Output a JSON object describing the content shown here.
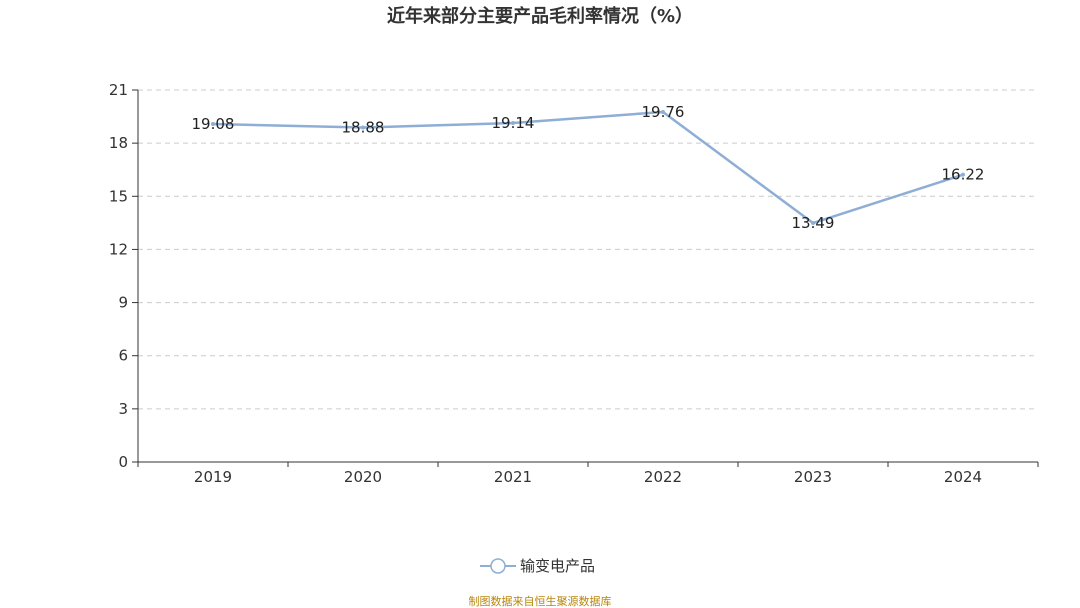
{
  "chart_data": {
    "type": "line",
    "title": "近年来部分主要产品毛利率情况（%）",
    "categories": [
      "2019",
      "2020",
      "2021",
      "2022",
      "2023",
      "2024"
    ],
    "series": [
      {
        "name": "输变电产品",
        "values": [
          19.08,
          18.88,
          19.14,
          19.76,
          13.49,
          16.22
        ],
        "color": "#8eaed6"
      }
    ],
    "ylim": [
      0,
      21
    ],
    "yticks": [
      0,
      3,
      6,
      9,
      12,
      15,
      18,
      21
    ],
    "grid": true,
    "legend": "bottom-center",
    "xlabel": "",
    "ylabel": ""
  },
  "source_note": "制图数据来自恒生聚源数据库",
  "colors": {
    "line": "#8eaed6",
    "grid": "#cccccc",
    "axis": "#333333",
    "source": "#b8860b"
  }
}
